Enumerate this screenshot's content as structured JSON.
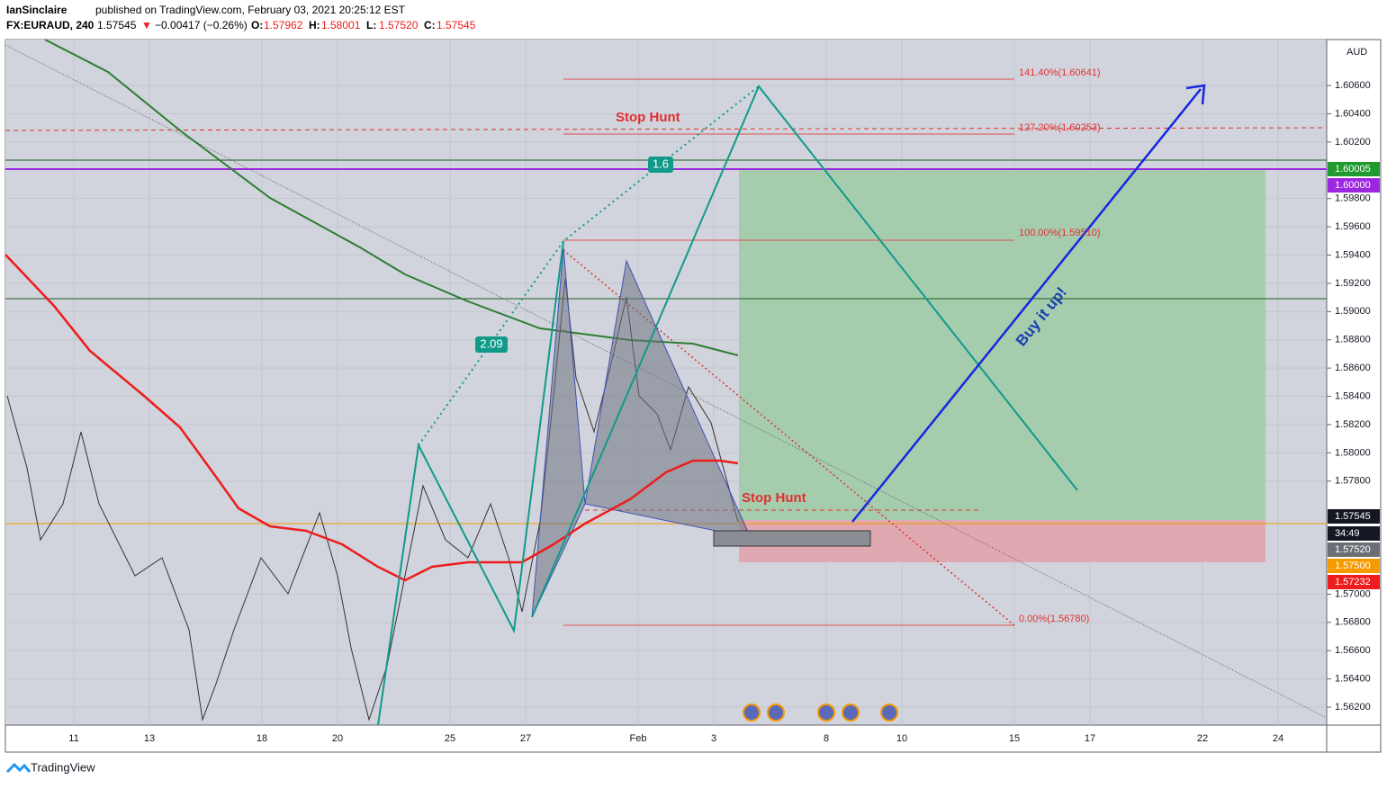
{
  "header": {
    "author": "IanSinclaire",
    "published": "published on TradingView.com, February 03, 2021 20:25:12 EST",
    "symbol": "FX:EURAUD, 240",
    "last": "1.57545",
    "arrow": "▼",
    "change": "−0.00417 (−0.26%)",
    "ohlc": [
      {
        "key": "O:",
        "value": "1.57962"
      },
      {
        "key": "H:",
        "value": "1.58001"
      },
      {
        "key": "L:",
        "value": "1.57520"
      },
      {
        "key": "C:",
        "value": "1.57545"
      }
    ]
  },
  "price_axis": {
    "currency": "AUD",
    "ylim": [
      1.56073,
      1.60925
    ],
    "ticks": [
      {
        "value": 1.562,
        "label": "1.56200"
      },
      {
        "value": 1.564,
        "label": "1.56400"
      },
      {
        "value": 1.566,
        "label": "1.56600"
      },
      {
        "value": 1.568,
        "label": "1.56800"
      },
      {
        "value": 1.57,
        "label": "1.57000"
      },
      {
        "value": 1.578,
        "label": "1.57800"
      },
      {
        "value": 1.58,
        "label": "1.58000"
      },
      {
        "value": 1.582,
        "label": "1.58200"
      },
      {
        "value": 1.584,
        "label": "1.58400"
      },
      {
        "value": 1.586,
        "label": "1.58600"
      },
      {
        "value": 1.588,
        "label": "1.58800"
      },
      {
        "value": 1.59,
        "label": "1.59000"
      },
      {
        "value": 1.592,
        "label": "1.59200"
      },
      {
        "value": 1.594,
        "label": "1.59400"
      },
      {
        "value": 1.596,
        "label": "1.59600"
      },
      {
        "value": 1.598,
        "label": "1.59800"
      },
      {
        "value": 1.602,
        "label": "1.60200"
      },
      {
        "value": 1.604,
        "label": "1.60400"
      },
      {
        "value": 1.606,
        "label": "1.60600"
      }
    ],
    "tags": [
      {
        "label": "1.60005",
        "color": "#1e9a2e"
      },
      {
        "label": "1.60000",
        "color": "#9c27e0"
      },
      {
        "label": "1.57545",
        "color": "#131722"
      },
      {
        "label": "34:49",
        "color": "#131722"
      },
      {
        "label": "1.57520",
        "color": "#6b6e75"
      },
      {
        "label": "1.57500",
        "color": "#f59a00"
      },
      {
        "label": "1.57232",
        "color": "#ee1c1c"
      }
    ]
  },
  "time_axis": [
    "11",
    "13",
    "18",
    "20",
    "25",
    "27",
    "Feb",
    "3",
    "8",
    "10",
    "15",
    "17",
    "22",
    "24"
  ],
  "annotations": {
    "stop_hunt_top": "Stop Hunt",
    "stop_hunt_bottom": "Stop Hunt",
    "buy": "Buy it up!",
    "badge_a": "1.6",
    "badge_b": "2.09",
    "fib": [
      "141.40%(1.60641)",
      "127.20%(1.60253)",
      "100.00%(1.59510)",
      "0.00%(1.56780)"
    ]
  },
  "footer": "TradingView"
}
